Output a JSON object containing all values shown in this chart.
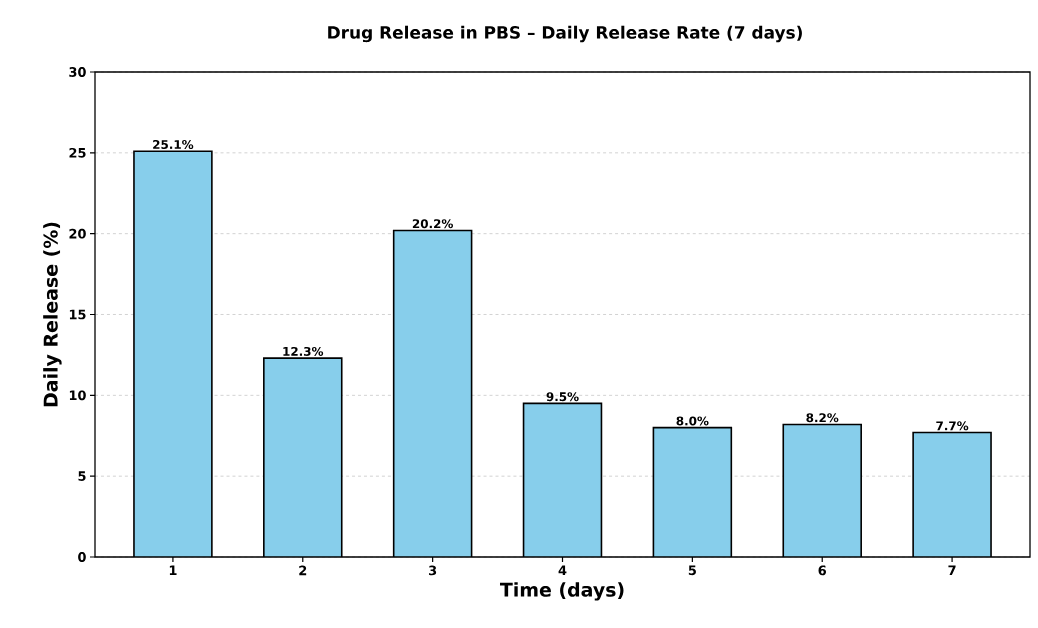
{
  "chart_data": {
    "type": "bar",
    "title": "Drug Release in PBS – Daily Release Rate (7 days)",
    "xlabel": "Time (days)",
    "ylabel": "Daily Release (%)",
    "categories": [
      "1",
      "2",
      "3",
      "4",
      "5",
      "6",
      "7"
    ],
    "values": [
      25.1,
      12.3,
      20.2,
      9.5,
      8.0,
      8.2,
      7.7
    ],
    "value_labels": [
      "25.1%",
      "12.3%",
      "20.2%",
      "9.5%",
      "8.0%",
      "8.2%",
      "7.7%"
    ],
    "color": "#87ceeb",
    "ylim": [
      0,
      30
    ],
    "yticks": [
      0,
      5,
      10,
      15,
      20,
      25,
      30
    ],
    "grid": "y"
  }
}
